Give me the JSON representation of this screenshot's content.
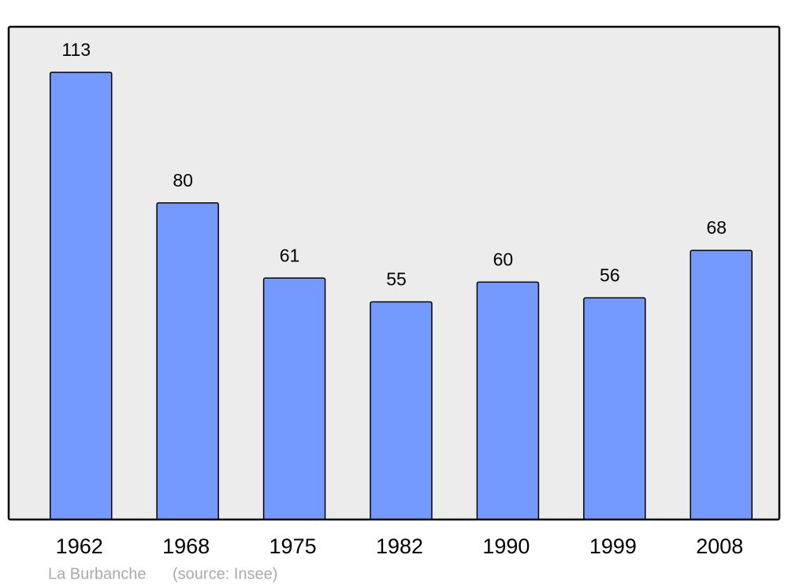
{
  "chart_data": {
    "type": "bar",
    "categories": [
      "1962",
      "1968",
      "1975",
      "1982",
      "1990",
      "1999",
      "2008"
    ],
    "values": [
      113,
      80,
      61,
      55,
      60,
      56,
      68
    ],
    "color": "#7499ff",
    "ylim": [
      0,
      124.5
    ],
    "caption": "La Burbanche",
    "source": "(source: Insee)"
  }
}
